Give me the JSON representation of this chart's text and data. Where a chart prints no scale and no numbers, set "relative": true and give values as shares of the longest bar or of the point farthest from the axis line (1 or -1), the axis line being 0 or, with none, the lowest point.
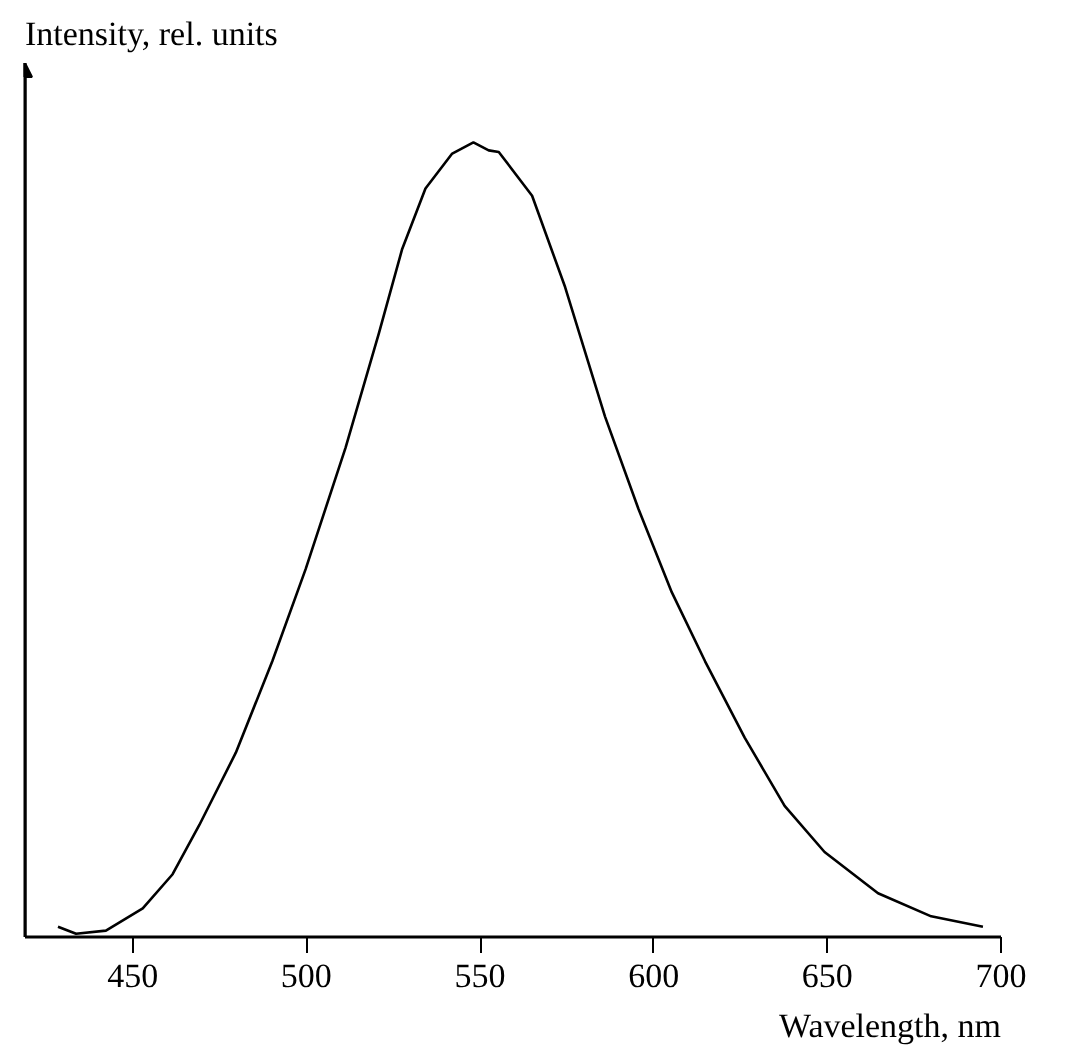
{
  "chart_data": {
    "type": "line",
    "relative": true,
    "xlabel": "Wavelength, nm",
    "ylabel": "Intensity, rel. units",
    "xlim": [
      419,
      700
    ],
    "xticks": [
      450,
      500,
      550,
      600,
      650,
      700
    ],
    "grid": false,
    "marker": "none",
    "line_style": "solid",
    "x": [
      428.5,
      433.7,
      442.3,
      452.9,
      461.5,
      469.2,
      479.7,
      490.2,
      499.8,
      511.3,
      520.9,
      527.6,
      534.3,
      542,
      548.1,
      552.5,
      555.4,
      565,
      574.5,
      586,
      595.6,
      605.2,
      614.8,
      626.2,
      637.7,
      649.2,
      664.6,
      679.9,
      694.8
    ],
    "series": [
      {
        "color": "#000000",
        "values": [
          0.013,
          0.004,
          0.008,
          0.036,
          0.079,
          0.141,
          0.232,
          0.347,
          0.463,
          0.616,
          0.76,
          0.866,
          0.942,
          0.986,
          1.0,
          0.99,
          0.988,
          0.933,
          0.818,
          0.655,
          0.539,
          0.434,
          0.347,
          0.251,
          0.165,
          0.107,
          0.055,
          0.026,
          0.013
        ]
      }
    ]
  }
}
